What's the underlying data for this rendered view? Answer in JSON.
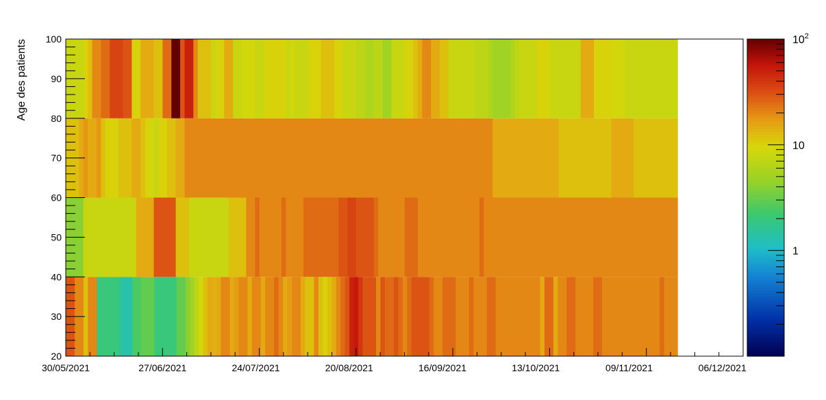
{
  "chart_data": {
    "type": "heatmap",
    "title": "",
    "xlabel": "",
    "ylabel": "Age des patients",
    "x_axis": {
      "scale": "time",
      "range": [
        "2021-05-30",
        "2021-12-12"
      ],
      "tick_labels": [
        "30/05/2021",
        "27/06/2021",
        "24/07/2021",
        "20/08/2021",
        "16/09/2021",
        "13/10/2021",
        "09/11/2021",
        "06/12/2021"
      ],
      "data_end": "2021-11-23"
    },
    "y_axis": {
      "range": [
        20,
        100
      ],
      "ticks": [
        20,
        30,
        40,
        50,
        60,
        70,
        80,
        90,
        100
      ]
    },
    "color_axis": {
      "scale": "log",
      "range": [
        0.1,
        100
      ],
      "palette": "rainbow (dark blue → cyan → green → yellow → orange → red → dark red)",
      "tick_labels": [
        {
          "value": 1,
          "label": "1"
        },
        {
          "value": 10,
          "label": "10"
        },
        {
          "value": 100,
          "label": "10",
          "exponent": "2"
        }
      ]
    },
    "grid": false,
    "series": [
      {
        "age_band": [
          20,
          40
        ],
        "values": [
          30,
          30,
          20,
          20,
          12,
          20,
          20,
          2,
          2,
          2,
          2,
          2,
          1.5,
          1.3,
          1.3,
          2.5,
          2.5,
          3,
          3,
          3,
          2,
          2,
          2,
          2,
          2,
          3,
          3,
          4,
          5,
          7,
          9,
          12,
          15,
          14,
          15,
          20,
          20,
          15,
          17,
          20,
          20,
          15,
          20,
          20,
          15,
          20,
          20,
          25,
          20,
          15,
          17,
          20,
          20,
          15,
          12,
          12,
          20,
          12,
          10,
          12,
          15,
          20,
          25,
          30,
          50,
          55,
          40,
          30,
          30,
          30,
          20,
          30,
          25,
          25,
          30,
          25,
          20,
          25,
          30,
          30,
          30,
          30,
          25,
          20,
          20,
          25,
          25,
          25,
          20,
          20,
          20,
          25,
          20,
          20,
          20,
          25,
          25,
          20,
          20,
          20,
          20,
          20,
          20,
          20,
          20,
          20,
          20,
          15,
          25,
          25,
          15,
          20,
          20,
          25,
          25,
          20,
          20,
          20,
          20,
          25,
          25,
          20,
          20,
          20,
          20,
          20,
          20,
          20,
          20,
          20,
          20,
          20,
          20,
          20,
          25,
          20,
          20,
          20
        ]
      },
      {
        "age_band": [
          40,
          60
        ],
        "values": [
          4,
          4,
          4,
          4,
          8,
          8,
          8,
          8,
          8,
          8,
          8,
          8,
          8,
          8,
          8,
          8,
          15,
          15,
          15,
          15,
          30,
          30,
          30,
          30,
          30,
          12,
          12,
          12,
          8,
          8,
          8,
          8,
          8,
          8,
          8,
          8,
          8,
          12,
          12,
          12,
          12,
          20,
          20,
          25,
          20,
          20,
          20,
          20,
          20,
          25,
          20,
          20,
          20,
          20,
          25,
          25,
          25,
          25,
          25,
          25,
          25,
          25,
          30,
          30,
          35,
          35,
          30,
          30,
          30,
          30,
          25,
          20,
          20,
          20,
          20,
          20,
          20,
          25,
          25,
          25,
          20,
          20,
          20,
          20,
          20,
          20,
          20,
          20,
          20,
          20,
          20,
          20,
          20,
          20,
          25,
          20,
          20,
          20,
          20,
          20,
          20,
          20,
          20,
          20,
          20,
          20,
          20,
          20,
          20,
          20,
          20,
          20,
          20,
          20,
          20,
          20,
          20,
          20,
          20,
          20,
          20,
          20,
          20,
          20,
          20,
          20,
          20,
          20,
          20,
          20,
          20,
          20,
          20,
          20,
          20,
          20,
          20,
          20,
          20
        ]
      },
      {
        "age_band": [
          60,
          80
        ],
        "values": [
          12,
          12,
          12,
          15,
          18,
          15,
          15,
          18,
          12,
          10,
          10,
          10,
          12,
          12,
          12,
          15,
          15,
          12,
          10,
          9,
          8,
          10,
          10,
          12,
          12,
          15,
          15,
          20,
          20,
          20,
          20,
          20,
          20,
          20,
          20,
          20,
          20,
          20,
          20,
          20,
          20,
          20,
          20,
          20,
          20,
          20,
          20,
          20,
          20,
          20,
          20,
          20,
          20,
          20,
          20,
          20,
          20,
          20,
          20,
          20,
          20,
          20,
          20,
          20,
          20,
          20,
          20,
          20,
          20,
          20,
          20,
          20,
          20,
          20,
          20,
          20,
          20,
          20,
          20,
          20,
          20,
          20,
          20,
          20,
          20,
          20,
          20,
          20,
          20,
          20,
          20,
          20,
          20,
          20,
          20,
          20,
          20,
          15,
          15,
          15,
          15,
          15,
          15,
          15,
          15,
          15,
          15,
          15,
          15,
          15,
          15,
          15,
          12,
          12,
          12,
          12,
          12,
          12,
          12,
          12,
          12,
          12,
          12,
          12,
          15,
          15,
          15,
          15,
          15,
          12,
          12,
          12,
          12,
          12,
          12,
          12,
          12,
          12,
          12
        ]
      },
      {
        "age_band": [
          80,
          100
        ],
        "values": [
          8,
          8,
          8,
          8,
          10,
          12,
          20,
          20,
          25,
          25,
          35,
          35,
          35,
          30,
          30,
          10,
          10,
          15,
          15,
          15,
          12,
          12,
          25,
          25,
          100,
          100,
          30,
          50,
          50,
          20,
          12,
          12,
          12,
          8,
          10,
          10,
          15,
          15,
          8,
          8,
          9,
          9,
          9,
          8,
          8,
          10,
          10,
          10,
          10,
          10,
          8,
          9,
          8,
          8,
          8,
          10,
          10,
          10,
          12,
          12,
          12,
          10,
          10,
          8,
          8,
          8,
          7,
          7,
          6,
          6,
          7,
          7,
          5,
          5,
          8,
          8,
          8,
          10,
          10,
          12,
          15,
          20,
          20,
          15,
          15,
          12,
          12,
          8,
          8,
          8,
          8,
          8,
          8,
          7,
          7,
          7,
          6,
          5,
          5,
          5,
          5,
          6,
          7,
          8,
          8,
          8,
          8,
          10,
          10,
          10,
          8,
          8,
          8,
          8,
          8,
          8,
          8,
          15,
          15,
          15,
          10,
          10,
          10,
          10,
          9,
          9,
          9,
          8,
          8,
          8,
          8,
          8,
          8,
          8,
          8,
          8,
          8,
          8,
          8
        ]
      }
    ]
  }
}
